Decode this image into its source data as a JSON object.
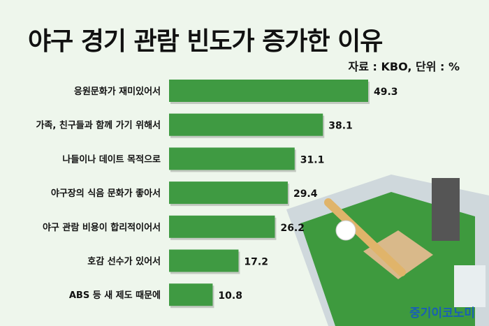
{
  "chart_data": {
    "type": "bar",
    "orientation": "horizontal",
    "title": "야구 경기 관람 빈도가 증가한 이유",
    "subtitle": "자료 : KBO, 단위 : %",
    "categories": [
      "응원문화가 재미있어서",
      "가족, 친구들과 함께 가기 위해서",
      "나들이나 데이트 목적으로",
      "야구장의 식음 문화가 좋아서",
      "야구 관람 비용이 합리적이어서",
      "호감 선수가 있어서",
      "ABS 등 새 제도 때문에"
    ],
    "values": [
      49.3,
      38.1,
      31.1,
      29.4,
      26.2,
      17.2,
      10.8
    ],
    "value_labels": [
      "49.3",
      "38.1",
      "31.1",
      "29.4",
      "26.2",
      "17.2",
      "10.8"
    ],
    "xlim": [
      0,
      50
    ],
    "grid": false,
    "bar_color": "#3f9a42",
    "background_color": "#eef6ec"
  },
  "logo": "중기이코노미"
}
